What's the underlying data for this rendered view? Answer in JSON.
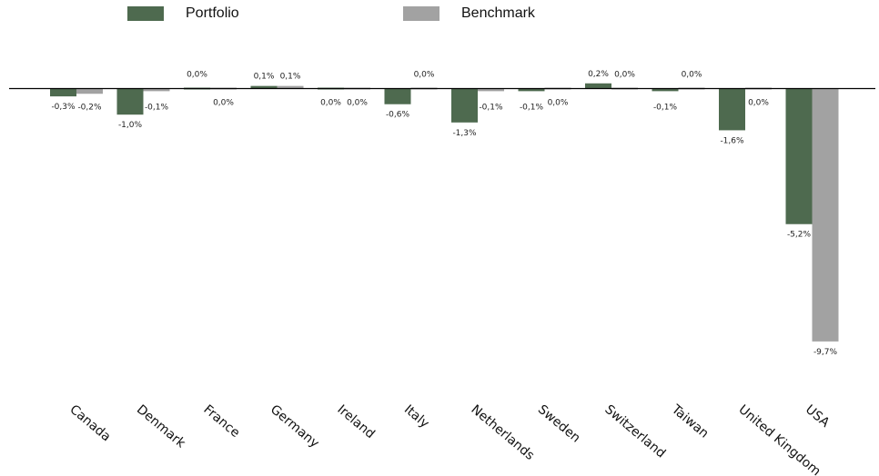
{
  "chart_data": {
    "type": "bar",
    "title": "",
    "xlabel": "",
    "ylabel": "",
    "ylim": [
      -11,
      0.5
    ],
    "grid": false,
    "legend_position": "top",
    "categories": [
      "Canada",
      "Denmark",
      "France",
      "Germany",
      "Ireland",
      "Italy",
      "Netherlands",
      "Sweden",
      "Switzerland",
      "Taiwan",
      "United Kingdom",
      "USA"
    ],
    "series": [
      {
        "name": "Portfolio",
        "color": "#4e6a4f",
        "values": [
          -0.3,
          -1.0,
          0.0,
          0.1,
          0.0,
          -0.6,
          -1.3,
          -0.1,
          0.2,
          -0.1,
          -1.6,
          -5.2
        ],
        "labels": [
          "-0,3%",
          "-1,0%",
          "0,0%",
          "0,1%",
          "0,0%",
          "-0,6%",
          "-1,3%",
          "-0,1%",
          "0,2%",
          "-0,1%",
          "-1,6%",
          "-5,2%"
        ]
      },
      {
        "name": "Benchmark",
        "color": "#a2a2a2",
        "values": [
          -0.2,
          -0.1,
          0.0,
          0.1,
          0.0,
          0.0,
          -0.1,
          0.0,
          0.0,
          0.0,
          0.0,
          -9.7
        ],
        "labels": [
          "-0,2%",
          "-0,1%",
          "0,0%",
          "0,1%",
          "0,0%",
          "0,0%",
          "-0,1%",
          "0,0%",
          "0,0%",
          "0,0%",
          "0,0%",
          "-9,7%"
        ]
      }
    ]
  }
}
